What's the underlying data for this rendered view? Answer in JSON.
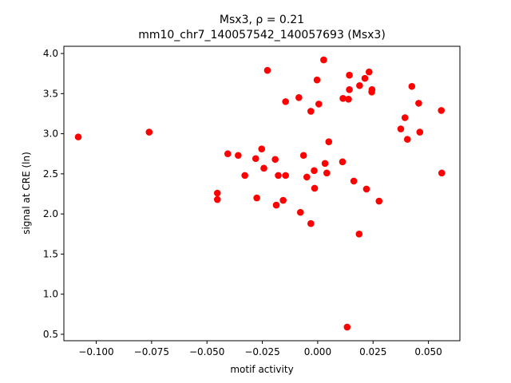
{
  "chart_data": {
    "type": "scatter",
    "title_line1": "Msx3, ρ = 0.21",
    "title_line2": "mm10_chr7_140057542_140057693 (Msx3)",
    "xlabel": "motif activity",
    "ylabel": "signal at CRE (ln)",
    "xlim": [
      -0.1146,
      0.0642
    ],
    "ylim": [
      0.42,
      4.09
    ],
    "xticks": [
      -0.1,
      -0.075,
      -0.05,
      -0.025,
      0.0,
      0.025,
      0.05
    ],
    "xtick_labels": [
      "−0.100",
      "−0.075",
      "−0.050",
      "−0.025",
      "0.000",
      "0.025",
      "0.050"
    ],
    "yticks": [
      0.5,
      1.0,
      1.5,
      2.0,
      2.5,
      3.0,
      3.5,
      4.0
    ],
    "ytick_labels": [
      "0.5",
      "1.0",
      "1.5",
      "2.0",
      "2.5",
      "3.0",
      "3.5",
      "4.0"
    ],
    "grid": false,
    "marker_color": "#ff0000",
    "points": [
      {
        "x": -0.1081,
        "y": 2.96
      },
      {
        "x": -0.0761,
        "y": 3.02
      },
      {
        "x": -0.0453,
        "y": 2.26
      },
      {
        "x": -0.0453,
        "y": 2.18
      },
      {
        "x": -0.0406,
        "y": 2.75
      },
      {
        "x": -0.0359,
        "y": 2.73
      },
      {
        "x": -0.0329,
        "y": 2.48
      },
      {
        "x": -0.028,
        "y": 2.69
      },
      {
        "x": -0.0275,
        "y": 2.2
      },
      {
        "x": -0.0253,
        "y": 2.81
      },
      {
        "x": -0.0243,
        "y": 2.57
      },
      {
        "x": -0.0227,
        "y": 3.79
      },
      {
        "x": -0.0192,
        "y": 2.68
      },
      {
        "x": -0.0187,
        "y": 2.11
      },
      {
        "x": -0.0178,
        "y": 2.48
      },
      {
        "x": -0.0156,
        "y": 2.17
      },
      {
        "x": -0.0145,
        "y": 2.48
      },
      {
        "x": -0.0145,
        "y": 3.4
      },
      {
        "x": -0.0085,
        "y": 3.45
      },
      {
        "x": -0.0078,
        "y": 2.02
      },
      {
        "x": -0.0064,
        "y": 2.73
      },
      {
        "x": -0.0049,
        "y": 2.46
      },
      {
        "x": -0.0031,
        "y": 3.28
      },
      {
        "x": -0.0031,
        "y": 1.88
      },
      {
        "x": -0.0016,
        "y": 2.54
      },
      {
        "x": -0.0014,
        "y": 2.32
      },
      {
        "x": -0.0003,
        "y": 3.67
      },
      {
        "x": 0.0005,
        "y": 3.37
      },
      {
        "x": 0.0027,
        "y": 3.92
      },
      {
        "x": 0.0033,
        "y": 2.63
      },
      {
        "x": 0.0041,
        "y": 2.51
      },
      {
        "x": 0.005,
        "y": 2.9
      },
      {
        "x": 0.0112,
        "y": 2.65
      },
      {
        "x": 0.0114,
        "y": 3.44
      },
      {
        "x": 0.0133,
        "y": 0.59
      },
      {
        "x": 0.0139,
        "y": 3.43
      },
      {
        "x": 0.0143,
        "y": 3.73
      },
      {
        "x": 0.0143,
        "y": 3.55
      },
      {
        "x": 0.0163,
        "y": 2.41
      },
      {
        "x": 0.0189,
        "y": 3.6
      },
      {
        "x": 0.0187,
        "y": 1.75
      },
      {
        "x": 0.0213,
        "y": 3.69
      },
      {
        "x": 0.022,
        "y": 2.31
      },
      {
        "x": 0.0232,
        "y": 3.77
      },
      {
        "x": 0.0244,
        "y": 3.52
      },
      {
        "x": 0.0245,
        "y": 3.55
      },
      {
        "x": 0.0277,
        "y": 2.16
      },
      {
        "x": 0.0375,
        "y": 3.06
      },
      {
        "x": 0.0394,
        "y": 3.2
      },
      {
        "x": 0.0405,
        "y": 2.93
      },
      {
        "x": 0.0425,
        "y": 3.59
      },
      {
        "x": 0.0456,
        "y": 3.38
      },
      {
        "x": 0.0461,
        "y": 3.02
      },
      {
        "x": 0.0558,
        "y": 3.29
      },
      {
        "x": 0.056,
        "y": 2.51
      }
    ]
  }
}
